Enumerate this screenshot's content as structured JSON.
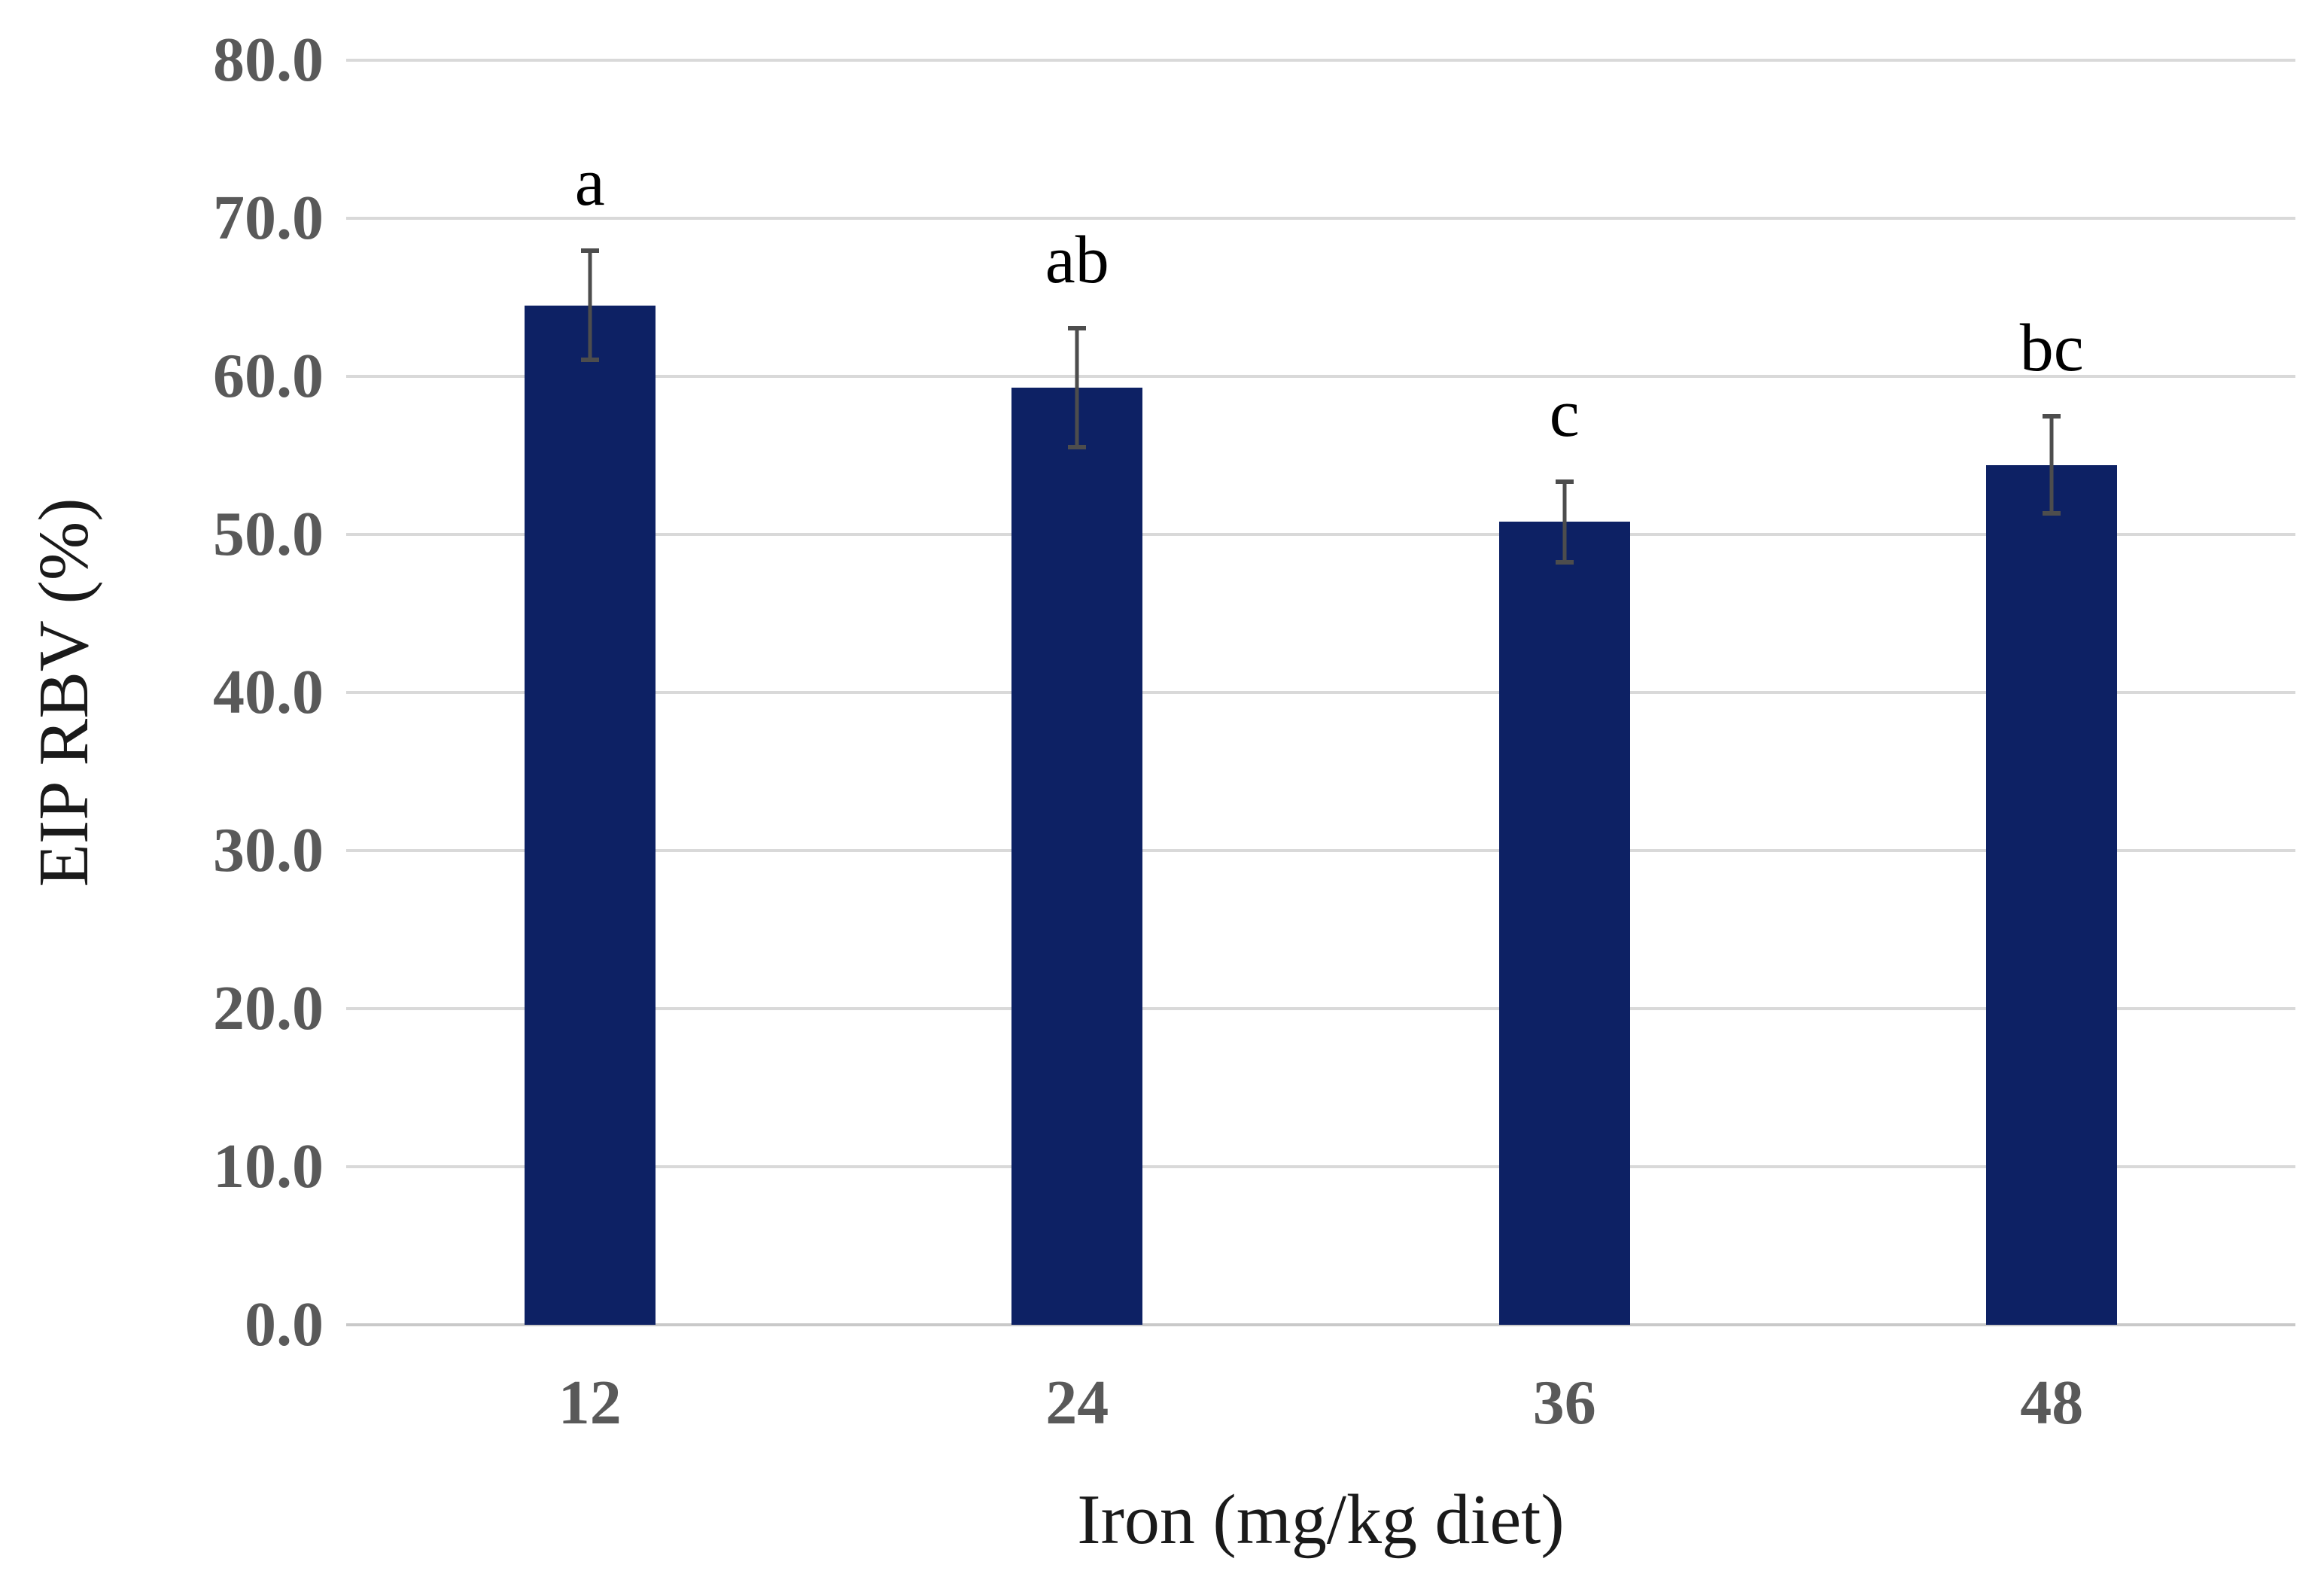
{
  "chart_data": {
    "type": "bar",
    "title": "",
    "categories": [
      "12",
      "24",
      "36",
      "48"
    ],
    "values": [
      64.5,
      59.3,
      50.8,
      54.4
    ],
    "error_bars": [
      3.6,
      3.9,
      2.7,
      3.2
    ],
    "significance_letters": [
      "a",
      "ab",
      "c",
      "bc"
    ],
    "xlabel": "Iron (mg/kg diet)",
    "ylabel": "EIP RBV (%)",
    "ylim": [
      0,
      80
    ],
    "ytick_step": 10,
    "ytick_labels": [
      "0.0",
      "10.0",
      "20.0",
      "30.0",
      "40.0",
      "50.0",
      "60.0",
      "70.0",
      "80.0"
    ],
    "grid": true,
    "legend": "none",
    "colors": {
      "background": "#ffffff",
      "bar": "#0d2164",
      "gridline": "#d9d9d9",
      "axis_line": "#c9c9c9",
      "tick_label": "#595959",
      "axis_title": "#1a1a1a",
      "letter": "#000000",
      "error_bar": "#4d4d4d"
    }
  }
}
